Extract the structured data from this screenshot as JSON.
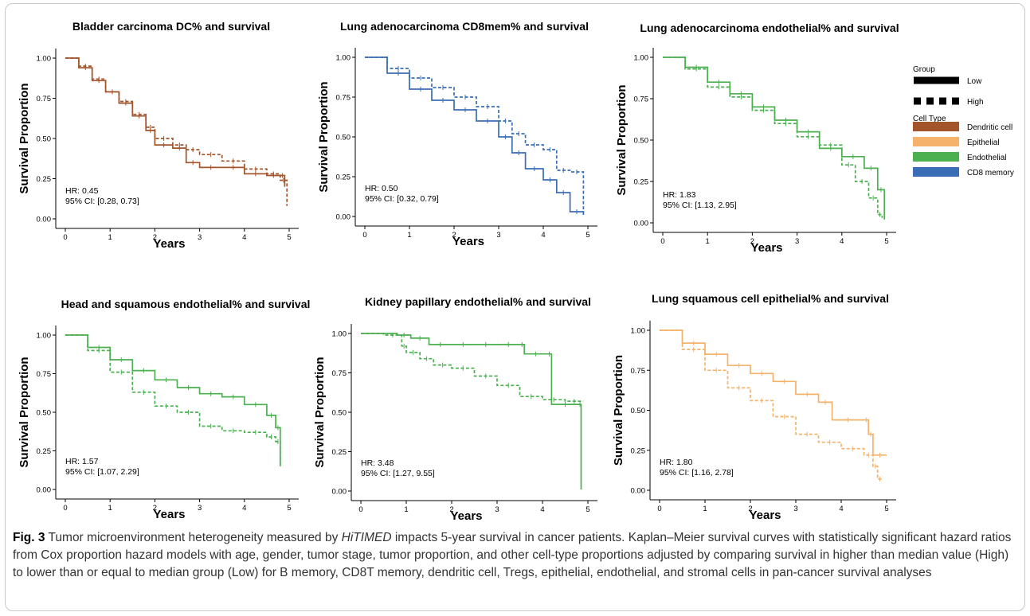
{
  "legend": {
    "group_title": "Group",
    "group_items": [
      {
        "label": "Low",
        "dash": "solid"
      },
      {
        "label": "High",
        "dash": "dashed"
      }
    ],
    "celltype_title": "Cell Type",
    "celltype_items": [
      {
        "label": "Dendritic cell",
        "color": "#a3542a"
      },
      {
        "label": "Epithelial",
        "color": "#f5b26b"
      },
      {
        "label": "Endothelial",
        "color": "#4caf50"
      },
      {
        "label": "CD8 memory",
        "color": "#3a6db5"
      }
    ]
  },
  "caption": {
    "label": "Fig. 3",
    "text_before": "Tumor microenvironment heterogeneity measured by ",
    "method": "HiTIMED",
    "text_after": " impacts 5-year survival in cancer patients. Kaplan–Meier survival curves with statistically significant hazard ratios from Cox proportion hazard models with age, gender, tumor stage, tumor proportion, and other cell-type proportions adjusted by comparing survival in higher than median value (High) to lower than or equal to median group (Low) for B memory, CD8T memory, dendritic cell, Tregs, epithelial, endothelial, and stromal cells in pan-cancer survival analyses"
  },
  "chart_data": [
    {
      "type": "line",
      "title": "Bladder carcinoma DC% and survival",
      "xlabel": "Years",
      "ylabel": "Survival Proportion",
      "xlim": [
        0,
        5
      ],
      "ylim": [
        0,
        1
      ],
      "xticks": [
        "0",
        "1",
        "2",
        "3",
        "4",
        "5"
      ],
      "yticks": [
        "0.00",
        "0.25",
        "0.50",
        "0.75",
        "1.00"
      ],
      "color": "#a3542a",
      "hr_text": "HR: 0.45",
      "ci_text": "95% CI: [0.28, 0.73]",
      "series": [
        {
          "name": "Low",
          "x": [
            0,
            0.3,
            0.6,
            0.9,
            1.2,
            1.5,
            1.8,
            2.0,
            2.4,
            2.7,
            3.0,
            3.5,
            4.0,
            4.5,
            4.8,
            4.9
          ],
          "y": [
            1.0,
            0.94,
            0.86,
            0.79,
            0.72,
            0.64,
            0.55,
            0.46,
            0.44,
            0.35,
            0.32,
            0.32,
            0.28,
            0.27,
            0.27,
            0.2
          ]
        },
        {
          "name": "High",
          "x": [
            0,
            0.3,
            0.6,
            0.9,
            1.2,
            1.5,
            1.8,
            2.0,
            2.4,
            2.7,
            3.0,
            3.5,
            4.0,
            4.5,
            4.8,
            4.95
          ],
          "y": [
            1.0,
            0.95,
            0.87,
            0.79,
            0.73,
            0.65,
            0.57,
            0.5,
            0.46,
            0.43,
            0.4,
            0.36,
            0.31,
            0.28,
            0.24,
            0.08
          ]
        }
      ]
    },
    {
      "type": "line",
      "title": "Lung adenocarcinoma CD8mem% and survival",
      "xlabel": "Years",
      "ylabel": "Survival Proportion",
      "xlim": [
        0,
        5
      ],
      "ylim": [
        0,
        1
      ],
      "xticks": [
        "0",
        "1",
        "2",
        "3",
        "4",
        "5"
      ],
      "yticks": [
        "0.00",
        "0.25",
        "0.50",
        "0.75",
        "1.00"
      ],
      "color": "#3a6db5",
      "hr_text": "HR: 0.50",
      "ci_text": "95% CI: [0.32, 0.79]",
      "series": [
        {
          "name": "Low",
          "x": [
            0,
            0.5,
            1.0,
            1.5,
            2.0,
            2.5,
            3.0,
            3.3,
            3.6,
            4.0,
            4.3,
            4.6,
            4.9
          ],
          "y": [
            1.0,
            0.9,
            0.8,
            0.73,
            0.67,
            0.6,
            0.5,
            0.4,
            0.3,
            0.23,
            0.15,
            0.03,
            0.01
          ]
        },
        {
          "name": "High",
          "x": [
            0,
            0.5,
            1.0,
            1.5,
            2.0,
            2.5,
            3.0,
            3.3,
            3.6,
            4.0,
            4.3,
            4.6,
            4.9
          ],
          "y": [
            1.0,
            0.93,
            0.87,
            0.81,
            0.75,
            0.69,
            0.6,
            0.52,
            0.45,
            0.42,
            0.29,
            0.28,
            0.02
          ]
        }
      ]
    },
    {
      "type": "line",
      "title": "Lung adenocarcinoma endothelial% and survival",
      "xlabel": "Years",
      "ylabel": "Survival Proportion",
      "xlim": [
        0,
        5
      ],
      "ylim": [
        0,
        1
      ],
      "xticks": [
        "0",
        "1",
        "2",
        "3",
        "4",
        "5"
      ],
      "yticks": [
        "0.00",
        "0.25",
        "0.50",
        "0.75",
        "1.00"
      ],
      "color": "#4caf50",
      "hr_text": "HR: 1.83",
      "ci_text": "95% CI: [1.13, 2.95]",
      "series": [
        {
          "name": "Low",
          "x": [
            0,
            0.5,
            1.0,
            1.5,
            2.0,
            2.5,
            3.0,
            3.5,
            4.0,
            4.5,
            4.8,
            4.95
          ],
          "y": [
            1.0,
            0.94,
            0.85,
            0.78,
            0.7,
            0.62,
            0.55,
            0.45,
            0.4,
            0.33,
            0.2,
            0.02
          ]
        },
        {
          "name": "High",
          "x": [
            0,
            0.5,
            1.0,
            1.5,
            2.0,
            2.5,
            3.0,
            3.5,
            4.0,
            4.3,
            4.6,
            4.8,
            4.9
          ],
          "y": [
            1.0,
            0.93,
            0.82,
            0.76,
            0.68,
            0.6,
            0.52,
            0.47,
            0.35,
            0.25,
            0.15,
            0.05,
            0.03
          ]
        }
      ]
    },
    {
      "type": "line",
      "title": "Head and squamous endothelial% and survival",
      "xlabel": "Years",
      "ylabel": "Survival Proportion",
      "xlim": [
        0,
        5
      ],
      "ylim": [
        0,
        1
      ],
      "xticks": [
        "0",
        "1",
        "2",
        "3",
        "4",
        "5"
      ],
      "yticks": [
        "0.00",
        "0.25",
        "0.50",
        "0.75",
        "1.00"
      ],
      "color": "#4caf50",
      "hr_text": "HR: 1.57",
      "ci_text": "95% CI: [1.07, 2.29]",
      "series": [
        {
          "name": "Low",
          "x": [
            0,
            0.5,
            1.0,
            1.5,
            2.0,
            2.5,
            3.0,
            3.5,
            4.0,
            4.5,
            4.7,
            4.8
          ],
          "y": [
            1.0,
            0.92,
            0.84,
            0.77,
            0.71,
            0.66,
            0.62,
            0.6,
            0.55,
            0.48,
            0.4,
            0.15
          ]
        },
        {
          "name": "High",
          "x": [
            0,
            0.5,
            1.0,
            1.5,
            2.0,
            2.5,
            3.0,
            3.5,
            4.0,
            4.5,
            4.7,
            4.8
          ],
          "y": [
            1.0,
            0.9,
            0.76,
            0.63,
            0.54,
            0.5,
            0.41,
            0.38,
            0.37,
            0.34,
            0.31,
            0.15
          ]
        }
      ]
    },
    {
      "type": "line",
      "title": "Kidney papillary endothelial% and survival",
      "xlabel": "Years",
      "ylabel": "Survival Proportion",
      "xlim": [
        0,
        5
      ],
      "ylim": [
        0,
        1
      ],
      "xticks": [
        "0",
        "1",
        "2",
        "3",
        "4",
        "5"
      ],
      "yticks": [
        "0.00",
        "0.25",
        "0.50",
        "0.75",
        "1.00"
      ],
      "color": "#4caf50",
      "hr_text": "HR: 3.48",
      "ci_text": "95% CI: [1.27, 9.55]",
      "series": [
        {
          "name": "Low",
          "x": [
            0,
            0.8,
            1.1,
            1.5,
            2.0,
            2.5,
            3.0,
            3.5,
            3.6,
            4.1,
            4.2,
            4.8,
            4.85
          ],
          "y": [
            1.0,
            0.99,
            0.97,
            0.93,
            0.93,
            0.93,
            0.93,
            0.93,
            0.87,
            0.87,
            0.55,
            0.55,
            0.01
          ]
        },
        {
          "name": "High",
          "x": [
            0,
            0.5,
            0.9,
            1.0,
            1.3,
            1.6,
            2.0,
            2.5,
            3.0,
            3.5,
            4.0,
            4.5,
            4.9
          ],
          "y": [
            1.0,
            0.99,
            0.92,
            0.88,
            0.84,
            0.8,
            0.78,
            0.73,
            0.67,
            0.6,
            0.58,
            0.57,
            0.57
          ]
        }
      ]
    },
    {
      "type": "line",
      "title": "Lung squamous cell epithelial% and survival",
      "xlabel": "Years",
      "ylabel": "Survival Proportion",
      "xlim": [
        0,
        5
      ],
      "ylim": [
        0,
        1
      ],
      "xticks": [
        "0",
        "1",
        "2",
        "3",
        "4",
        "5"
      ],
      "yticks": [
        "0.00",
        "0.25",
        "0.50",
        "0.75",
        "1.00"
      ],
      "color": "#f5b26b",
      "hr_text": "HR: 1.80",
      "ci_text": "95% CI: [1.16, 2.78]",
      "series": [
        {
          "name": "Low",
          "x": [
            0,
            0.5,
            1.0,
            1.5,
            2.0,
            2.5,
            3.0,
            3.5,
            3.8,
            4.5,
            4.6,
            4.7,
            5.0
          ],
          "y": [
            1.0,
            0.92,
            0.85,
            0.78,
            0.73,
            0.68,
            0.6,
            0.55,
            0.44,
            0.44,
            0.35,
            0.22,
            0.22
          ]
        },
        {
          "name": "High",
          "x": [
            0,
            0.5,
            1.0,
            1.5,
            2.0,
            2.5,
            3.0,
            3.5,
            4.0,
            4.5,
            4.7,
            4.8,
            4.9
          ],
          "y": [
            1.0,
            0.88,
            0.75,
            0.64,
            0.56,
            0.46,
            0.35,
            0.3,
            0.26,
            0.22,
            0.15,
            0.07,
            0.07
          ]
        }
      ]
    }
  ]
}
